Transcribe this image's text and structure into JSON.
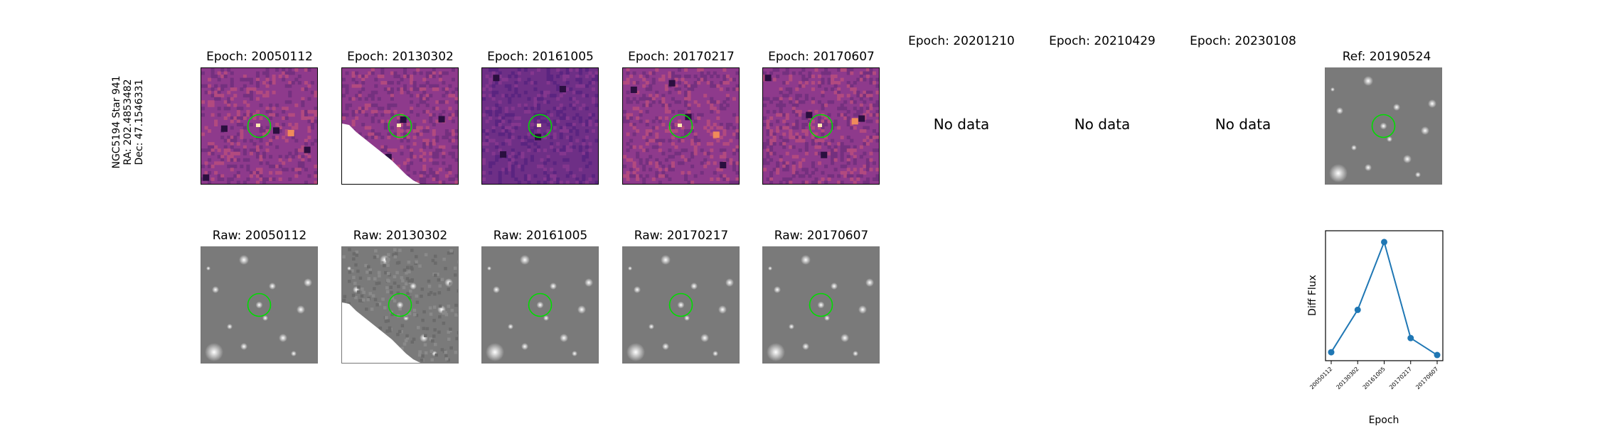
{
  "target": {
    "line1": "NGC5194 Star 941",
    "line2": "RA: 202.4853482",
    "line3": "Dec: 47.1546331"
  },
  "diff_row": [
    {
      "title": "Epoch: 20050112",
      "has_data": true
    },
    {
      "title": "Epoch: 20130302",
      "has_data": true
    },
    {
      "title": "Epoch: 20161005",
      "has_data": true
    },
    {
      "title": "Epoch: 20170217",
      "has_data": true
    },
    {
      "title": "Epoch: 20170607",
      "has_data": true
    },
    {
      "title": "Epoch: 20201210",
      "has_data": false
    },
    {
      "title": "Epoch: 20210429",
      "has_data": false
    },
    {
      "title": "Epoch: 20230108",
      "has_data": false
    }
  ],
  "no_data_text": "No data",
  "reference": {
    "title": "Ref: 20190524"
  },
  "raw_row": [
    {
      "title": "Raw: 20050112"
    },
    {
      "title": "Raw: 20130302"
    },
    {
      "title": "Raw: 20161005"
    },
    {
      "title": "Raw: 20170217"
    },
    {
      "title": "Raw: 20170607"
    }
  ],
  "colors": {
    "circle": "#00dd00",
    "diff_base": "#8e3a8c",
    "line": "#1f77b4"
  },
  "chart_data": {
    "type": "line",
    "categories": [
      "20050112",
      "20130302",
      "20161005",
      "20170217",
      "20170607"
    ],
    "values": [
      0.0,
      0.3,
      0.78,
      0.1,
      -0.02
    ],
    "title": "",
    "xlabel": "Epoch",
    "ylabel": "Diff Flux",
    "ylim": [
      -0.06,
      0.86
    ],
    "y_ticks_shown": false,
    "grid": false
  }
}
